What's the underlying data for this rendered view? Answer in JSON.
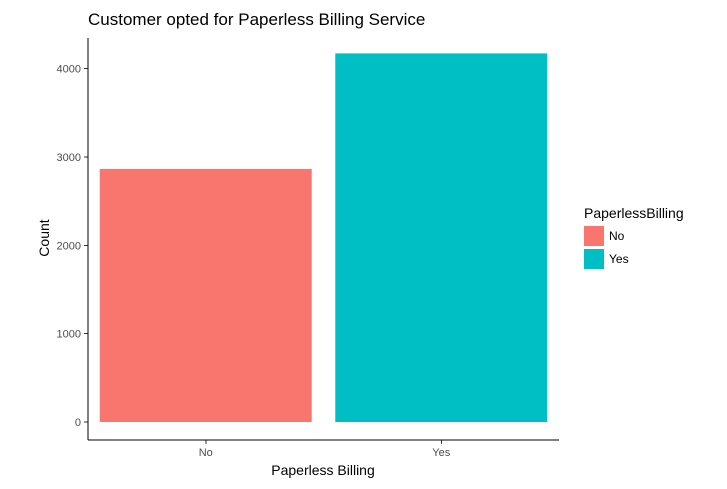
{
  "chart_data": {
    "type": "bar",
    "title": "Customer opted for Paperless Billing Service",
    "xlabel": "Paperless Billing",
    "ylabel": "Count",
    "categories": [
      "No",
      "Yes"
    ],
    "values": [
      2864,
      4171
    ],
    "colors": [
      "#F8766D",
      "#00BFC4"
    ],
    "ylim": [
      0,
      4300
    ],
    "yticks": [
      0,
      1000,
      2000,
      3000,
      4000
    ],
    "grid": false,
    "legend": {
      "title": "PaperlessBilling",
      "entries": [
        "No",
        "Yes"
      ],
      "position": "right"
    }
  }
}
